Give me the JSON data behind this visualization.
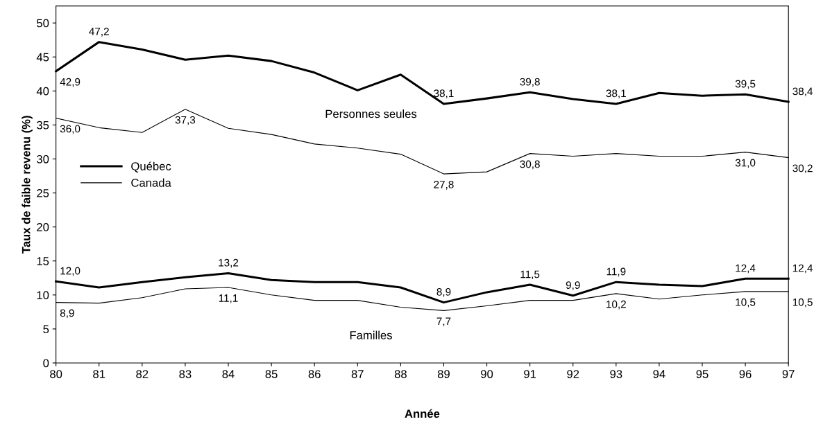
{
  "chart_data": {
    "type": "line",
    "xlabel": "Année",
    "ylabel": "Taux de faible revenu (%)",
    "x": [
      80,
      81,
      82,
      83,
      84,
      85,
      86,
      87,
      88,
      89,
      90,
      91,
      92,
      93,
      94,
      95,
      96,
      97
    ],
    "xlim": [
      80,
      97
    ],
    "xticks": [
      80,
      81,
      82,
      83,
      84,
      85,
      86,
      87,
      88,
      89,
      90,
      91,
      92,
      93,
      94,
      95,
      96,
      97
    ],
    "ylim": [
      0,
      52.5
    ],
    "yticks": [
      0,
      5,
      10,
      15,
      20,
      25,
      30,
      35,
      40,
      45,
      50
    ],
    "grid": false,
    "legend": "left",
    "marker": "none",
    "line_style": "solid",
    "series": [
      {
        "name": "Québec",
        "color": "#000000",
        "values": [
          42.9,
          47.2,
          46.1,
          44.6,
          45.2,
          44.4,
          42.7,
          40.1,
          42.4,
          38.1,
          38.9,
          39.8,
          38.8,
          38.1,
          39.7,
          39.3,
          39.5,
          38.4
        ],
        "value_labels": [
          "42,9",
          "47,2",
          null,
          null,
          null,
          null,
          null,
          null,
          null,
          "38,1",
          null,
          "39,8",
          null,
          "38,1",
          null,
          null,
          "39,5",
          "38,4"
        ]
      },
      {
        "name": "Canada",
        "color": "#000000",
        "values": [
          36.0,
          34.6,
          33.9,
          37.3,
          34.5,
          33.6,
          32.2,
          31.6,
          30.7,
          27.8,
          28.1,
          30.8,
          30.4,
          30.8,
          30.4,
          30.4,
          31.0,
          30.2
        ],
        "value_labels": [
          "36,0",
          null,
          null,
          "37,3",
          null,
          null,
          null,
          null,
          null,
          "27,8",
          null,
          "30,8",
          null,
          null,
          null,
          null,
          "31,0",
          "30,2"
        ]
      },
      {
        "color": "#000000",
        "values": [
          12.0,
          11.1,
          11.9,
          12.6,
          13.2,
          12.2,
          11.9,
          11.9,
          11.1,
          8.9,
          10.4,
          11.5,
          9.9,
          11.9,
          11.5,
          11.3,
          12.4,
          12.4
        ],
        "value_labels": [
          "12,0",
          null,
          null,
          null,
          "13,2",
          null,
          null,
          null,
          null,
          "8,9",
          null,
          "11,5",
          "9,9",
          "11,9",
          null,
          null,
          "12,4",
          "12,4"
        ]
      },
      {
        "color": "#000000",
        "values": [
          8.9,
          8.8,
          9.6,
          10.9,
          11.1,
          10.0,
          9.2,
          9.2,
          8.2,
          7.7,
          8.4,
          9.2,
          9.2,
          10.2,
          9.4,
          10.0,
          10.5,
          10.5
        ],
        "value_labels": [
          "8,9",
          null,
          null,
          null,
          "11,1",
          null,
          null,
          null,
          null,
          "7,7",
          null,
          null,
          null,
          "10,2",
          null,
          null,
          "10,5",
          "10,5"
        ]
      }
    ],
    "annotations": [
      "Personnes seules",
      "Familles"
    ]
  }
}
